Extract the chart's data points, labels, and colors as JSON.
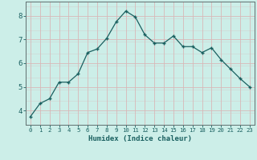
{
  "x": [
    0,
    1,
    2,
    3,
    4,
    5,
    6,
    7,
    8,
    9,
    10,
    11,
    12,
    13,
    14,
    15,
    16,
    17,
    18,
    19,
    20,
    21,
    22,
    23
  ],
  "y": [
    3.75,
    4.3,
    4.5,
    5.2,
    5.2,
    5.55,
    6.45,
    6.6,
    7.05,
    7.75,
    8.2,
    7.95,
    7.2,
    6.85,
    6.85,
    7.15,
    6.7,
    6.7,
    6.45,
    6.65,
    6.15,
    5.75,
    5.35,
    5.0
  ],
  "bg_color": "#cceee8",
  "grid_color_v": "#d8b8b8",
  "grid_color_h": "#d8b8b8",
  "line_color": "#1a6060",
  "xlabel": "Humidex (Indice chaleur)",
  "yticks": [
    4,
    5,
    6,
    7,
    8
  ],
  "xticks": [
    0,
    1,
    2,
    3,
    4,
    5,
    6,
    7,
    8,
    9,
    10,
    11,
    12,
    13,
    14,
    15,
    16,
    17,
    18,
    19,
    20,
    21,
    22,
    23
  ],
  "ylim": [
    3.4,
    8.6
  ],
  "xlim": [
    -0.5,
    23.5
  ]
}
